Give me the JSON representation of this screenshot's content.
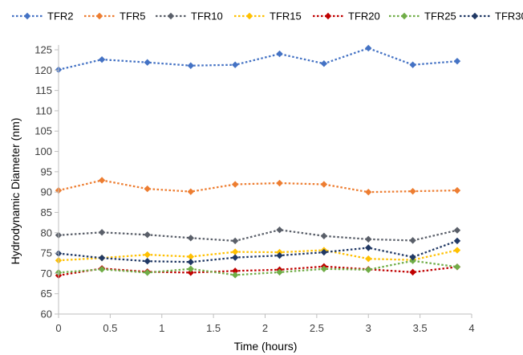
{
  "chart_data": {
    "type": "line",
    "xlabel": "Time (hours)",
    "ylabel": "Hydrodynamic Diameter (nm)",
    "xlim": [
      0,
      4
    ],
    "ylim": [
      60,
      125
    ],
    "x_ticks": [
      "0",
      "0.5",
      "1",
      "1.5",
      "2",
      "2.5",
      "3",
      "3.5",
      "4"
    ],
    "y_ticks": [
      "60",
      "65",
      "70",
      "75",
      "80",
      "85",
      "90",
      "95",
      "100",
      "105",
      "110",
      "115",
      "120",
      "125"
    ],
    "x_tick_values": [
      0,
      0.5,
      1,
      1.5,
      2,
      2.5,
      3,
      3.5,
      4
    ],
    "y_tick_values": [
      60,
      65,
      70,
      75,
      80,
      85,
      90,
      95,
      100,
      105,
      110,
      115,
      120,
      125
    ],
    "grid": false,
    "legend_position": "top",
    "x": [
      0,
      0.42,
      0.86,
      1.28,
      1.71,
      2.14,
      2.57,
      3.0,
      3.43,
      3.86
    ],
    "series": [
      {
        "name": "TFR2",
        "color": "#4472C4",
        "values": [
          120.1,
          122.6,
          121.9,
          121.1,
          121.3,
          124.0,
          121.6,
          125.4,
          121.3,
          122.2
        ]
      },
      {
        "name": "TFR5",
        "color": "#ED7D31",
        "values": [
          90.4,
          92.9,
          90.8,
          90.1,
          91.9,
          92.2,
          91.9,
          90.0,
          90.2,
          90.4
        ]
      },
      {
        "name": "TFR10",
        "color": "#5A5F69",
        "values": [
          79.4,
          80.1,
          79.5,
          78.7,
          78.0,
          80.7,
          79.2,
          78.4,
          78.1,
          80.6
        ]
      },
      {
        "name": "TFR15",
        "color": "#FFC000",
        "values": [
          73.2,
          73.8,
          74.6,
          74.1,
          75.3,
          75.2,
          75.7,
          73.6,
          73.3,
          75.7
        ]
      },
      {
        "name": "TFR20",
        "color": "#C00000",
        "values": [
          69.5,
          71.2,
          70.4,
          70.2,
          70.6,
          70.9,
          71.7,
          71.0,
          70.3,
          71.6
        ]
      },
      {
        "name": "TFR25",
        "color": "#70AD47",
        "values": [
          70.2,
          71.0,
          70.2,
          71.1,
          69.6,
          70.3,
          71.1,
          70.9,
          73.1,
          71.6
        ]
      },
      {
        "name": "TFR30",
        "color": "#203864",
        "values": [
          74.9,
          73.8,
          73.0,
          72.8,
          73.9,
          74.4,
          75.2,
          76.3,
          74.0,
          78.0
        ]
      }
    ]
  }
}
